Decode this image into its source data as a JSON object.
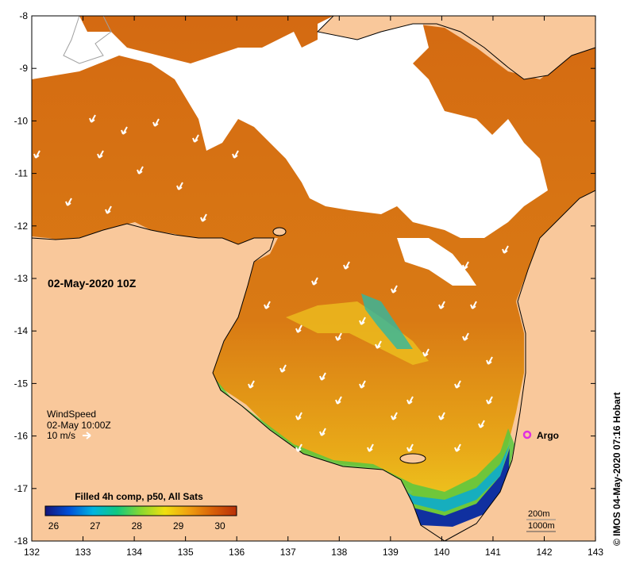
{
  "map": {
    "date_label": "02-May-2020 10Z",
    "wind": {
      "title": "WindSpeed",
      "time": "02-May 10:00Z",
      "scale": "10 m/s"
    },
    "argo_label": "Argo",
    "depth_labels": [
      "200m",
      "1000m"
    ],
    "colorbar": {
      "title": "Filled 4h comp, p50, All Sats",
      "ticks": [
        "26",
        "27",
        "28",
        "29",
        "30"
      ],
      "range": [
        25.8,
        30.4
      ],
      "colors": [
        "#14147a",
        "#0050d8",
        "#00b4e0",
        "#10c880",
        "#88d830",
        "#f0e010",
        "#f0a010",
        "#d86008",
        "#b83008"
      ]
    },
    "lat_ticks": [
      "-8",
      "-9",
      "-10",
      "-11",
      "-12",
      "-13",
      "-14",
      "-15",
      "-16",
      "-17",
      "-18"
    ],
    "lon_ticks": [
      "132",
      "133",
      "134",
      "135",
      "136",
      "137",
      "138",
      "139",
      "140",
      "141",
      "142",
      "143"
    ],
    "credit": "© IMOS 04-May-2020 07:16 Hobart",
    "colors": {
      "land": "#f9c89b",
      "cloud": "#ffffff",
      "sst_warm": "#d26810",
      "sst_mid": "#e89a18",
      "argo": "#e030e0"
    }
  }
}
